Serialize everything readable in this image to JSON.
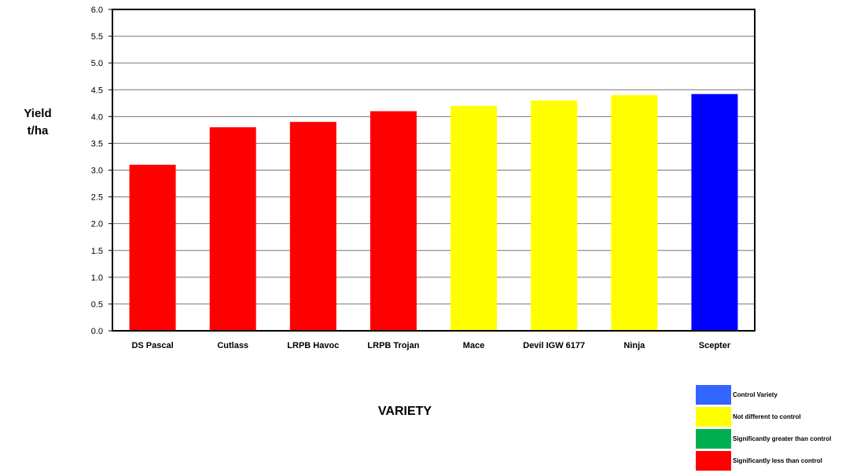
{
  "chart_data": {
    "type": "bar",
    "categories": [
      "DS Pascal",
      "Cutlass",
      "LRPB Havoc",
      "LRPB Trojan",
      "Mace",
      "Devil IGW 6177",
      "Ninja",
      "Scepter"
    ],
    "values": [
      3.1,
      3.8,
      3.9,
      4.1,
      4.2,
      4.3,
      4.4,
      4.42
    ],
    "bar_colors": [
      "#ff0000",
      "#ff0000",
      "#ff0000",
      "#ff0000",
      "#ffff00",
      "#ffff00",
      "#ffff00",
      "#0000ff"
    ],
    "ylim": [
      0,
      6.0
    ],
    "yticks": [
      "0.0",
      "0.5",
      "1.0",
      "1.5",
      "2.0",
      "2.5",
      "3.0",
      "3.5",
      "4.0",
      "4.5",
      "5.0",
      "5.5",
      "6.0"
    ],
    "ylabel_line1": "Yield",
    "ylabel_line2": "t/ha",
    "xlabel": "VARIETY",
    "grid": true,
    "legend_position": "bottom-right",
    "legend": [
      {
        "label": "Control Variety",
        "color": "#3366ff"
      },
      {
        "label": "Not different to control",
        "color": "#ffff00"
      },
      {
        "label": "Significantly greater than control",
        "color": "#00b050"
      },
      {
        "label": "Significantly less than control",
        "color": "#ff0000"
      }
    ]
  }
}
